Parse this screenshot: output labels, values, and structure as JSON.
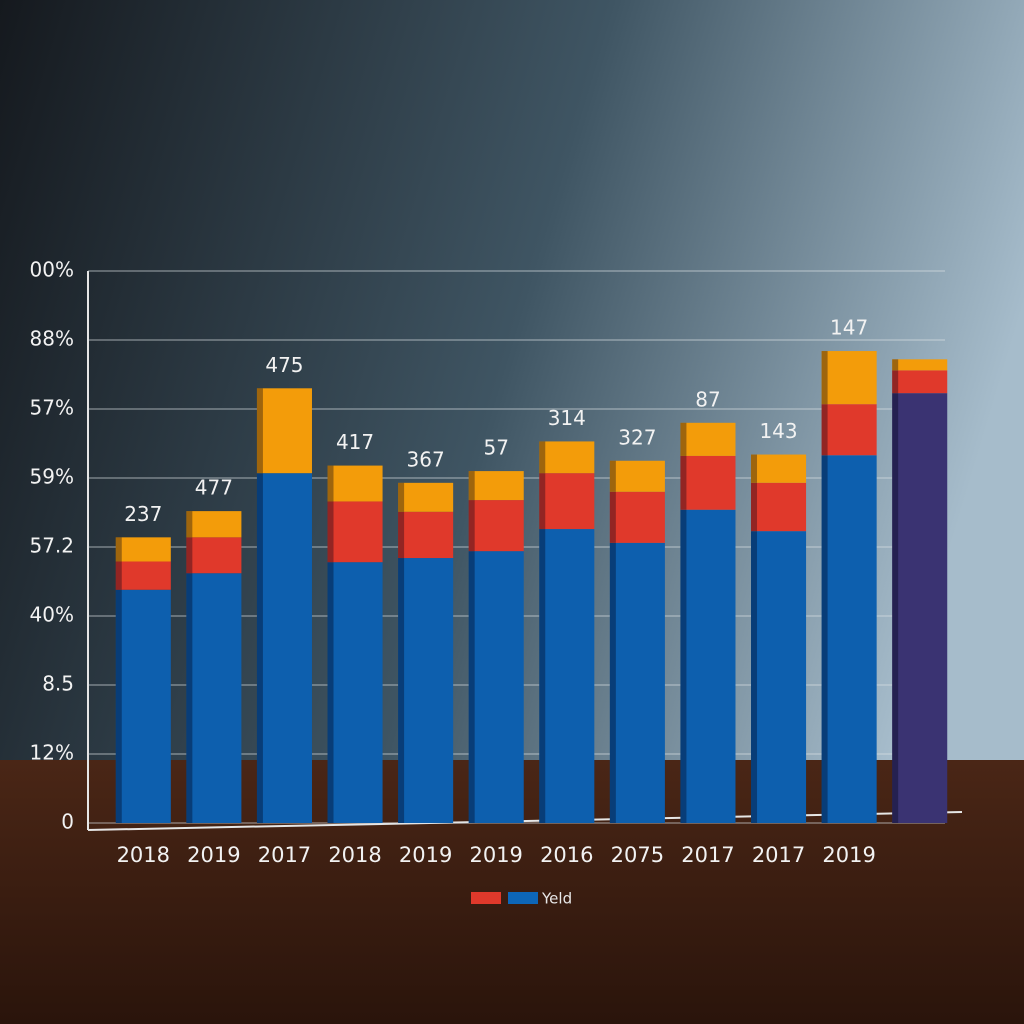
{
  "chart_data": {
    "type": "stacked_bar",
    "categories": [
      "2018",
      "2019",
      "2017",
      "2018",
      "2019",
      "2019",
      "2016",
      "2075",
      "2017",
      "2017",
      "2019",
      null
    ],
    "series": [
      {
        "name": "Yeld",
        "color": "#0d5fae",
        "colors": [
          "#0d5fae",
          "#0d5fae",
          "#0d5fae",
          "#0d5fae",
          "#0d5fae",
          "#0d5fae",
          "#0d5fae",
          "#0d5fae",
          "#0d5fae",
          "#0d5fae",
          "#0d5fae",
          "#3a3372"
        ],
        "values": [
          3.38,
          3.62,
          5.07,
          3.78,
          3.84,
          3.94,
          4.26,
          4.06,
          4.54,
          4.23,
          5.33,
          6.23
        ]
      },
      {
        "color": "#e0392b",
        "values": [
          0.41,
          0.52,
          0,
          0.88,
          0.67,
          0.74,
          0.81,
          0.74,
          0.78,
          0.7,
          0.74,
          0.33
        ]
      },
      {
        "color": "#f39c0a",
        "values": [
          0.35,
          0.38,
          1.23,
          0.52,
          0.42,
          0.42,
          0.46,
          0.45,
          0.48,
          0.41,
          0.77,
          0.16
        ]
      }
    ],
    "top_labels": [
      "237",
      "477",
      "475",
      "417",
      "367",
      "57",
      "314",
      "327",
      "87",
      "143",
      "147",
      null
    ],
    "legend": {
      "text": "Yeld",
      "swatches": [
        "#e0392b",
        "#0d66b8"
      ]
    },
    "ylim": [
      0,
      8
    ],
    "yticks": [
      0,
      {
        "value": 1,
        "label": "12%"
      },
      {
        "value": 2,
        "label": "8.5"
      },
      {
        "value": 3,
        "label": "40%"
      },
      {
        "value": 4,
        "label": "57.2"
      },
      {
        "value": 5,
        "label": "59%"
      },
      {
        "value": 6,
        "label": "57%"
      },
      {
        "value": 7,
        "label": "88%"
      },
      {
        "value": 8,
        "label": "00%"
      }
    ],
    "grid": true
  }
}
